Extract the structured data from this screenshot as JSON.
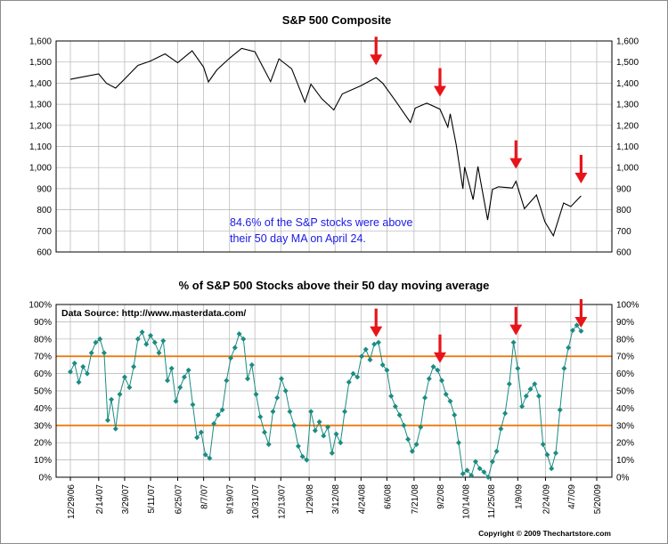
{
  "chart_data": [
    {
      "type": "line",
      "title": "S&P 500 Composite",
      "ylim": [
        600,
        1600
      ],
      "yticks": [
        "600",
        "700",
        "800",
        "900",
        "1,000",
        "1,100",
        "1,200",
        "1,300",
        "1,400",
        "1,500",
        "1,600"
      ],
      "grid": true,
      "annotation_lines": [
        "84.6% of the S&P stocks were above",
        "their 50 day MA on April 24."
      ],
      "series": [
        {
          "values": [
            [
              "2006-12-29",
              1418
            ],
            [
              "2007-01-19",
              1430
            ],
            [
              "2007-02-14",
              1444
            ],
            [
              "2007-02-27",
              1399
            ],
            [
              "2007-03-14",
              1377
            ],
            [
              "2007-03-29",
              1420
            ],
            [
              "2007-04-20",
              1484
            ],
            [
              "2007-05-11",
              1505
            ],
            [
              "2007-06-04",
              1539
            ],
            [
              "2007-06-25",
              1497
            ],
            [
              "2007-07-19",
              1553
            ],
            [
              "2007-08-07",
              1476
            ],
            [
              "2007-08-15",
              1406
            ],
            [
              "2007-08-29",
              1463
            ],
            [
              "2007-09-19",
              1518
            ],
            [
              "2007-10-09",
              1565
            ],
            [
              "2007-10-31",
              1549
            ],
            [
              "2007-11-26",
              1407
            ],
            [
              "2007-12-10",
              1515
            ],
            [
              "2007-12-31",
              1468
            ],
            [
              "2008-01-22",
              1310
            ],
            [
              "2008-02-01",
              1395
            ],
            [
              "2008-02-19",
              1326
            ],
            [
              "2008-03-10",
              1273
            ],
            [
              "2008-03-24",
              1349
            ],
            [
              "2008-04-24",
              1388
            ],
            [
              "2008-05-19",
              1426
            ],
            [
              "2008-05-30",
              1400
            ],
            [
              "2008-06-20",
              1317
            ],
            [
              "2008-07-15",
              1214
            ],
            [
              "2008-07-23",
              1282
            ],
            [
              "2008-08-11",
              1305
            ],
            [
              "2008-09-02",
              1277
            ],
            [
              "2008-09-15",
              1192
            ],
            [
              "2008-09-19",
              1255
            ],
            [
              "2008-09-29",
              1106
            ],
            [
              "2008-10-10",
              899
            ],
            [
              "2008-10-13",
              1003
            ],
            [
              "2008-10-27",
              848
            ],
            [
              "2008-11-04",
              1005
            ],
            [
              "2008-11-20",
              752
            ],
            [
              "2008-11-28",
              896
            ],
            [
              "2008-12-08",
              909
            ],
            [
              "2008-12-31",
              903
            ],
            [
              "2009-01-06",
              935
            ],
            [
              "2009-01-20",
              805
            ],
            [
              "2009-02-09",
              870
            ],
            [
              "2009-02-23",
              743
            ],
            [
              "2009-03-09",
              677
            ],
            [
              "2009-03-26",
              832
            ],
            [
              "2009-04-07",
              815
            ],
            [
              "2009-04-24",
              866
            ]
          ]
        }
      ],
      "arrows_at": [
        "2008-05-19",
        "2008-09-02",
        "2009-01-06",
        "2009-04-24"
      ]
    },
    {
      "type": "line",
      "title": "% of S&P 500 Stocks above their 50 day moving average",
      "ylim": [
        0,
        100
      ],
      "yticks": [
        "0%",
        "10%",
        "20%",
        "30%",
        "40%",
        "50%",
        "60%",
        "70%",
        "80%",
        "90%",
        "100%"
      ],
      "source_label": "Data Source:  http://www.masterdata.com/",
      "reference_lines": [
        70,
        30
      ],
      "reference_color": "#f07a10",
      "series_color": "#1a8c82",
      "series": [
        {
          "values": [
            [
              "2006-12-29",
              61
            ],
            [
              "2007-01-05",
              66
            ],
            [
              "2007-01-12",
              55
            ],
            [
              "2007-01-19",
              64
            ],
            [
              "2007-01-26",
              60
            ],
            [
              "2007-02-02",
              72
            ],
            [
              "2007-02-09",
              78
            ],
            [
              "2007-02-16",
              80
            ],
            [
              "2007-02-23",
              72
            ],
            [
              "2007-03-01",
              33
            ],
            [
              "2007-03-07",
              45
            ],
            [
              "2007-03-14",
              28
            ],
            [
              "2007-03-21",
              48
            ],
            [
              "2007-03-29",
              58
            ],
            [
              "2007-04-06",
              52
            ],
            [
              "2007-04-13",
              64
            ],
            [
              "2007-04-20",
              80
            ],
            [
              "2007-04-27",
              84
            ],
            [
              "2007-05-04",
              77
            ],
            [
              "2007-05-11",
              82
            ],
            [
              "2007-05-18",
              78
            ],
            [
              "2007-05-25",
              72
            ],
            [
              "2007-06-01",
              79
            ],
            [
              "2007-06-08",
              56
            ],
            [
              "2007-06-15",
              63
            ],
            [
              "2007-06-22",
              44
            ],
            [
              "2007-06-29",
              52
            ],
            [
              "2007-07-06",
              58
            ],
            [
              "2007-07-13",
              62
            ],
            [
              "2007-07-20",
              42
            ],
            [
              "2007-07-27",
              23
            ],
            [
              "2007-08-03",
              26
            ],
            [
              "2007-08-10",
              13
            ],
            [
              "2007-08-17",
              11
            ],
            [
              "2007-08-24",
              31
            ],
            [
              "2007-08-31",
              36
            ],
            [
              "2007-09-07",
              39
            ],
            [
              "2007-09-14",
              56
            ],
            [
              "2007-09-21",
              69
            ],
            [
              "2007-09-28",
              75
            ],
            [
              "2007-10-05",
              83
            ],
            [
              "2007-10-12",
              80
            ],
            [
              "2007-10-19",
              57
            ],
            [
              "2007-10-26",
              65
            ],
            [
              "2007-11-02",
              48
            ],
            [
              "2007-11-09",
              35
            ],
            [
              "2007-11-16",
              26
            ],
            [
              "2007-11-23",
              19
            ],
            [
              "2007-11-30",
              38
            ],
            [
              "2007-12-07",
              46
            ],
            [
              "2007-12-14",
              57
            ],
            [
              "2007-12-21",
              50
            ],
            [
              "2007-12-28",
              38
            ],
            [
              "2008-01-04",
              30
            ],
            [
              "2008-01-11",
              18
            ],
            [
              "2008-01-18",
              12
            ],
            [
              "2008-01-25",
              10
            ],
            [
              "2008-02-01",
              38
            ],
            [
              "2008-02-08",
              27
            ],
            [
              "2008-02-15",
              32
            ],
            [
              "2008-02-22",
              24
            ],
            [
              "2008-02-29",
              29
            ],
            [
              "2008-03-07",
              14
            ],
            [
              "2008-03-14",
              25
            ],
            [
              "2008-03-21",
              20
            ],
            [
              "2008-03-28",
              38
            ],
            [
              "2008-04-04",
              55
            ],
            [
              "2008-04-11",
              60
            ],
            [
              "2008-04-18",
              58
            ],
            [
              "2008-04-25",
              70
            ],
            [
              "2008-05-02",
              74
            ],
            [
              "2008-05-09",
              68
            ],
            [
              "2008-05-16",
              77
            ],
            [
              "2008-05-23",
              78
            ],
            [
              "2008-05-30",
              65
            ],
            [
              "2008-06-06",
              62
            ],
            [
              "2008-06-13",
              47
            ],
            [
              "2008-06-20",
              41
            ],
            [
              "2008-06-27",
              36
            ],
            [
              "2008-07-04",
              30
            ],
            [
              "2008-07-11",
              22
            ],
            [
              "2008-07-18",
              15
            ],
            [
              "2008-07-25",
              19
            ],
            [
              "2008-08-01",
              29
            ],
            [
              "2008-08-08",
              46
            ],
            [
              "2008-08-15",
              57
            ],
            [
              "2008-08-22",
              64
            ],
            [
              "2008-08-29",
              62
            ],
            [
              "2008-09-05",
              56
            ],
            [
              "2008-09-12",
              48
            ],
            [
              "2008-09-19",
              44
            ],
            [
              "2008-09-26",
              36
            ],
            [
              "2008-10-03",
              20
            ],
            [
              "2008-10-10",
              2
            ],
            [
              "2008-10-17",
              4
            ],
            [
              "2008-10-24",
              1
            ],
            [
              "2008-10-31",
              9
            ],
            [
              "2008-11-07",
              5
            ],
            [
              "2008-11-14",
              3
            ],
            [
              "2008-11-21",
              0
            ],
            [
              "2008-11-28",
              9
            ],
            [
              "2008-12-05",
              15
            ],
            [
              "2008-12-12",
              28
            ],
            [
              "2008-12-19",
              37
            ],
            [
              "2008-12-26",
              54
            ],
            [
              "2009-01-02",
              78
            ],
            [
              "2009-01-09",
              63
            ],
            [
              "2009-01-16",
              41
            ],
            [
              "2009-01-23",
              47
            ],
            [
              "2009-01-30",
              51
            ],
            [
              "2009-02-06",
              54
            ],
            [
              "2009-02-13",
              47
            ],
            [
              "2009-02-20",
              19
            ],
            [
              "2009-02-27",
              13
            ],
            [
              "2009-03-06",
              5
            ],
            [
              "2009-03-13",
              14
            ],
            [
              "2009-03-20",
              39
            ],
            [
              "2009-03-27",
              63
            ],
            [
              "2009-04-03",
              75
            ],
            [
              "2009-04-10",
              85
            ],
            [
              "2009-04-17",
              88
            ],
            [
              "2009-04-24",
              84.6
            ]
          ]
        }
      ],
      "arrows_at": [
        "2008-05-19",
        "2008-09-02",
        "2009-01-06",
        "2009-04-24"
      ]
    }
  ],
  "x_axis": {
    "ticks": [
      [
        "2006-12-29",
        "12/29/06"
      ],
      [
        "2007-02-14",
        "2/14/07"
      ],
      [
        "2007-03-29",
        "3/29/07"
      ],
      [
        "2007-05-11",
        "5/11/07"
      ],
      [
        "2007-06-25",
        "6/25/07"
      ],
      [
        "2007-08-07",
        "8/7/07"
      ],
      [
        "2007-09-19",
        "9/19/07"
      ],
      [
        "2007-10-31",
        "10/31/07"
      ],
      [
        "2007-12-13",
        "12/13/07"
      ],
      [
        "2008-01-29",
        "1/29/08"
      ],
      [
        "2008-03-12",
        "3/12/08"
      ],
      [
        "2008-04-24",
        "4/24/08"
      ],
      [
        "2008-06-06",
        "6/6/08"
      ],
      [
        "2008-07-21",
        "7/21/08"
      ],
      [
        "2008-09-02",
        "9/2/08"
      ],
      [
        "2008-10-14",
        "10/14/08"
      ],
      [
        "2008-11-25",
        "11/25/08"
      ],
      [
        "2009-01-09",
        "1/9/09"
      ],
      [
        "2009-02-24",
        "2/24/09"
      ],
      [
        "2009-04-07",
        "4/7/09"
      ],
      [
        "2009-05-20",
        "5/20/09"
      ]
    ]
  },
  "copyright": "Copyright © 2009 Thechartstore.com",
  "colors": {
    "arrow": "#e8141a",
    "price_line": "#000000",
    "grid": "#b4b4b4"
  }
}
